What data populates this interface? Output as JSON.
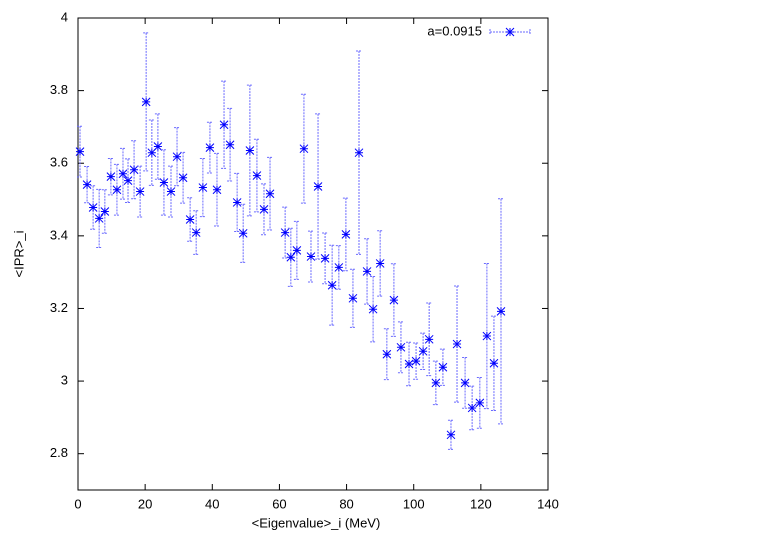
{
  "chart_data": {
    "type": "errorbar",
    "xlabel": "<Eigenvalue>_i (MeV)",
    "ylabel": "<IPR>_i",
    "xlim": [
      0,
      140
    ],
    "ylim": [
      2.7,
      4
    ],
    "xticks": [
      0,
      20,
      40,
      60,
      80,
      100,
      120,
      140
    ],
    "yticks": [
      2.8,
      3,
      3.2,
      3.4,
      3.6,
      3.8,
      4
    ],
    "grid": false,
    "legend": "top-right",
    "series": [
      {
        "name": "a=0.0915",
        "color": "#0000ff",
        "error_color": "#6a6aff",
        "x": [
          0.6,
          2.7,
          4.5,
          6.3,
          8,
          9.8,
          11.6,
          13.4,
          14.9,
          16.7,
          18.5,
          20.3,
          22,
          23.8,
          25.6,
          27.7,
          29.5,
          31.3,
          33.4,
          35.2,
          37.2,
          39.3,
          41.4,
          43.5,
          45.3,
          47.4,
          49.2,
          51.2,
          53.3,
          55.4,
          57.2,
          61.7,
          63.4,
          65.2,
          67.3,
          69.4,
          71.5,
          73.6,
          75.7,
          77.7,
          79.8,
          81.9,
          83.7,
          86.1,
          87.9,
          90,
          92,
          94.1,
          96.2,
          98.6,
          100.7,
          102.8,
          104.6,
          106.6,
          108.7,
          111.1,
          112.9,
          115.3,
          117.4,
          119.7,
          121.8,
          123.9,
          126
        ],
        "values": [
          3.632,
          3.541,
          3.478,
          3.448,
          3.467,
          3.563,
          3.527,
          3.571,
          3.552,
          3.582,
          3.522,
          3.769,
          3.629,
          3.646,
          3.547,
          3.522,
          3.618,
          3.56,
          3.445,
          3.409,
          3.533,
          3.643,
          3.527,
          3.706,
          3.651,
          3.492,
          3.407,
          3.635,
          3.566,
          3.473,
          3.516,
          3.409,
          3.341,
          3.36,
          3.64,
          3.343,
          3.536,
          3.338,
          3.264,
          3.313,
          3.404,
          3.228,
          3.629,
          3.302,
          3.198,
          3.324,
          3.074,
          3.223,
          3.093,
          3.047,
          3.055,
          3.082,
          3.115,
          2.995,
          3.038,
          2.852,
          3.102,
          2.995,
          2.926,
          2.94,
          3.124,
          3.049,
          3.192
        ],
        "errors": [
          0.07,
          0.05,
          0.06,
          0.08,
          0.06,
          0.05,
          0.07,
          0.07,
          0.06,
          0.08,
          0.07,
          0.19,
          0.09,
          0.09,
          0.09,
          0.07,
          0.08,
          0.07,
          0.06,
          0.06,
          0.08,
          0.07,
          0.1,
          0.12,
          0.1,
          0.08,
          0.08,
          0.18,
          0.1,
          0.07,
          0.1,
          0.07,
          0.08,
          0.08,
          0.15,
          0.07,
          0.2,
          0.07,
          0.11,
          0.06,
          0.1,
          0.08,
          0.28,
          0.09,
          0.09,
          0.09,
          0.07,
          0.1,
          0.07,
          0.06,
          0.05,
          0.05,
          0.1,
          0.06,
          0.05,
          0.04,
          0.16,
          0.07,
          0.06,
          0.07,
          0.2,
          0.13,
          0.31
        ]
      }
    ]
  }
}
